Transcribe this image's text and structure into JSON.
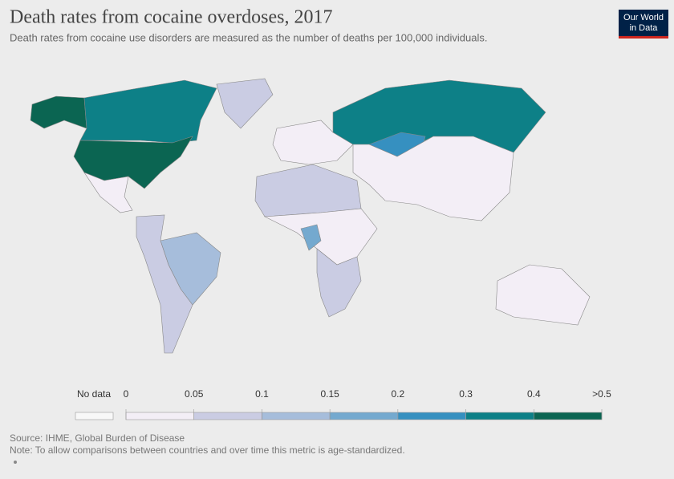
{
  "header": {
    "title": "Death rates from cocaine overdoses, 2017",
    "subtitle": "Death rates from cocaine use disorders are measured as the number of deaths per 100,000 individuals.",
    "logo": [
      "Our World",
      "in Data"
    ]
  },
  "legend": {
    "no_data_label": "No data",
    "ticks": [
      0,
      0.05,
      0.1,
      0.15,
      0.2,
      0.3,
      0.4,
      {
        "value": 0.5,
        "label": ">0.5"
      }
    ],
    "colors": [
      "#f3eef6",
      "#cacce3",
      "#a6bddb",
      "#74a9cf",
      "#3690c0",
      "#0d8087",
      "#0b6552"
    ],
    "no_data_color": "#f8f8f8"
  },
  "footer": {
    "source": "Source: IHME, Global Burden of Disease",
    "note": "Note: To allow comparisons between countries and over time this metric is age-standardized."
  }
}
